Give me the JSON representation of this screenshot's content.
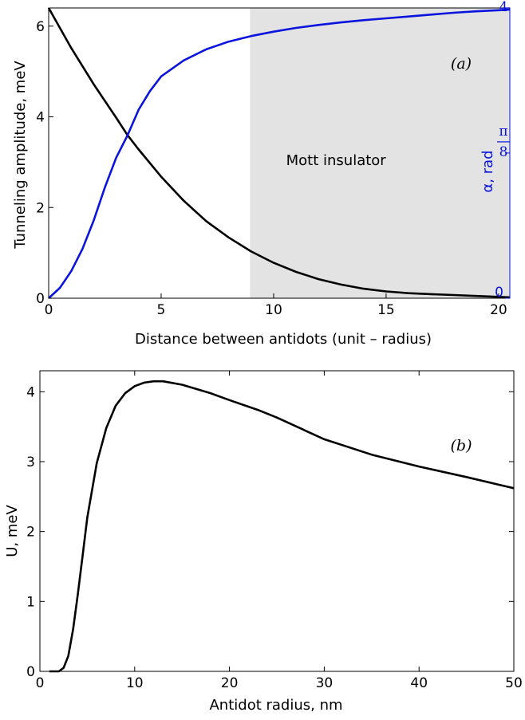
{
  "colors": {
    "black_curve": "#000000",
    "blue_curve": "#0a14dc",
    "shade": "#e3e3e3"
  },
  "chart_data": [
    {
      "type": "line",
      "panel_label": "(a)",
      "xlabel": "Distance between antidots (unit – radius)",
      "ylabel": "Tunneling amplitude, meV",
      "y2label": "α, rad",
      "xlim": [
        0,
        20.5
      ],
      "ylim": [
        0,
        6.4
      ],
      "y2lim": [
        0,
        0.785
      ],
      "xticks": [
        "0",
        "5",
        "10",
        "15",
        "20"
      ],
      "yticks": [
        "0",
        "2",
        "4",
        "6"
      ],
      "y2ticks": [
        {
          "value": 0,
          "label": "0"
        },
        {
          "value": 0.3927,
          "num": "π",
          "den": "8"
        },
        {
          "value": 0.7854,
          "num": "π",
          "den": "4"
        }
      ],
      "shaded_region": {
        "x_from": 8.95,
        "x_to": 20.5,
        "label": "Mott insulator"
      },
      "series": [
        {
          "axis": "left",
          "x": [
            0,
            1,
            2,
            3,
            3.5,
            4,
            5,
            6,
            7,
            8,
            9,
            10,
            11,
            12,
            13,
            14,
            15,
            16,
            17,
            18,
            19,
            20,
            20.5
          ],
          "y": [
            6.4,
            5.52,
            4.72,
            3.98,
            3.6,
            3.28,
            2.68,
            2.15,
            1.7,
            1.34,
            1.03,
            0.78,
            0.58,
            0.42,
            0.3,
            0.21,
            0.15,
            0.11,
            0.09,
            0.07,
            0.05,
            0.03,
            0.02
          ]
        },
        {
          "axis": "right",
          "x": [
            0,
            0.5,
            1,
            1.5,
            2,
            2.5,
            3,
            3.5,
            4,
            4.5,
            5,
            6,
            7,
            8,
            9,
            10,
            11,
            12,
            13,
            14,
            15,
            16,
            17,
            18,
            19,
            20,
            20.5
          ],
          "y": [
            0,
            0.028,
            0.073,
            0.133,
            0.21,
            0.3,
            0.38,
            0.44,
            0.51,
            0.56,
            0.6,
            0.643,
            0.673,
            0.694,
            0.709,
            0.721,
            0.731,
            0.739,
            0.746,
            0.752,
            0.757,
            0.762,
            0.767,
            0.772,
            0.776,
            0.779,
            0.781
          ]
        }
      ]
    },
    {
      "type": "line",
      "panel_label": "(b)",
      "xlabel": "Antidot radius, nm",
      "ylabel": "U, meV",
      "xlim": [
        0,
        50
      ],
      "ylim": [
        0,
        4.3
      ],
      "xticks": [
        "0",
        "10",
        "20",
        "30",
        "40",
        "50"
      ],
      "yticks": [
        "0",
        "1",
        "2",
        "3",
        "4"
      ],
      "series": [
        {
          "x": [
            1,
            2,
            2.5,
            3,
            3.5,
            4,
            4.5,
            5,
            6,
            7,
            8,
            9,
            10,
            11,
            12,
            13,
            15,
            18,
            20,
            23,
            25,
            30,
            35,
            40,
            45,
            50
          ],
          "y": [
            0,
            0.0,
            0.05,
            0.22,
            0.6,
            1.1,
            1.65,
            2.2,
            2.98,
            3.48,
            3.8,
            3.98,
            4.08,
            4.13,
            4.15,
            4.15,
            4.1,
            3.98,
            3.88,
            3.74,
            3.63,
            3.32,
            3.1,
            2.93,
            2.78,
            2.62
          ]
        }
      ]
    }
  ]
}
